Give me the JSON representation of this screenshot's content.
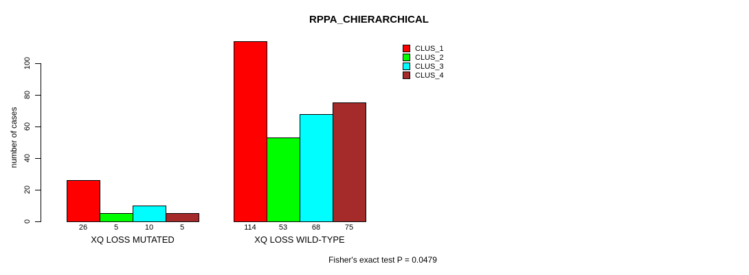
{
  "title": "RPPA_CHIERARCHICAL",
  "footnote": "Fisher's exact test P = 0.0479",
  "chart_data": {
    "type": "bar",
    "title": "RPPA_CHIERARCHICAL",
    "xlabel": "",
    "ylabel": "number of cases",
    "ylim": [
      0,
      100
    ],
    "yticks": [
      0,
      20,
      40,
      60,
      80,
      100
    ],
    "grid": false,
    "legend_position": "top-right",
    "categories": [
      "XQ LOSS MUTATED",
      "XQ LOSS WILD-TYPE"
    ],
    "series": [
      {
        "name": "CLUS_1",
        "color": "#fe0000",
        "values": [
          26,
          114
        ]
      },
      {
        "name": "CLUS_2",
        "color": "#00fe00",
        "values": [
          5,
          53
        ]
      },
      {
        "name": "CLUS_3",
        "color": "#00feff",
        "values": [
          10,
          68
        ]
      },
      {
        "name": "CLUS_4",
        "color": "#a52a2a",
        "values": [
          5,
          75
        ]
      }
    ],
    "annotation": "Fisher's exact test P = 0.0479"
  }
}
